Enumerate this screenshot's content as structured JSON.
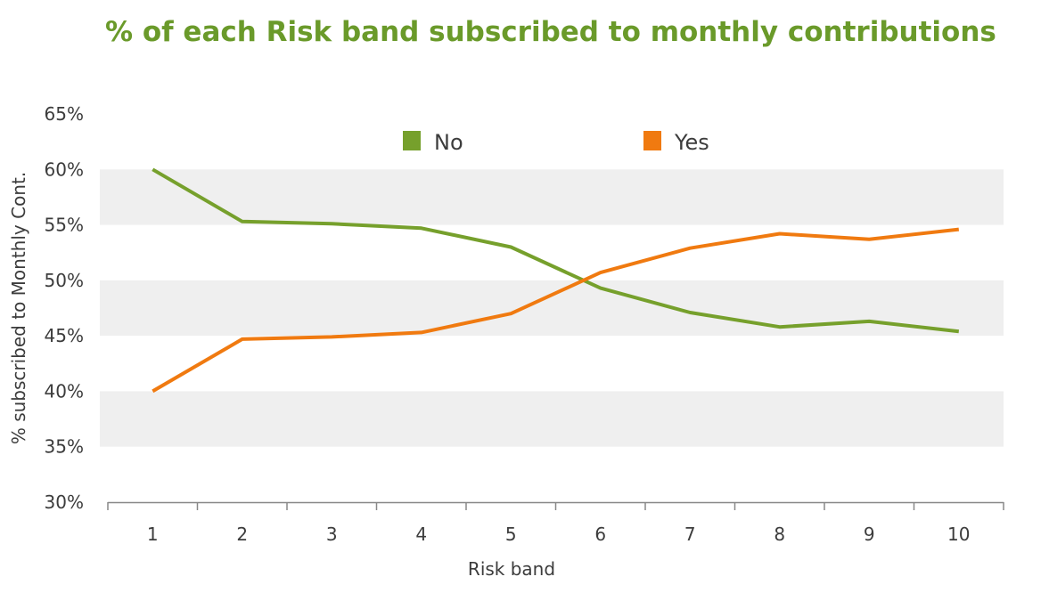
{
  "chart_data": {
    "type": "line",
    "title": "% of each Risk band subscribed to monthly contributions",
    "xlabel": "Risk band",
    "ylabel": "% subscribed to Monthly Cont.",
    "categories": [
      "1",
      "2",
      "3",
      "4",
      "5",
      "6",
      "7",
      "8",
      "9",
      "10"
    ],
    "y_ticks": [
      "30%",
      "35%",
      "40%",
      "45%",
      "50%",
      "55%",
      "60%",
      "65%"
    ],
    "ylim": [
      30,
      65
    ],
    "legend_position": "top-center",
    "grid": "alternating horizontal bands",
    "series": [
      {
        "name": "No",
        "color": "#76a02c",
        "values": [
          60.0,
          55.3,
          55.1,
          54.7,
          53.0,
          49.3,
          47.1,
          45.8,
          46.3,
          45.4
        ]
      },
      {
        "name": "Yes",
        "color": "#f07a10",
        "values": [
          40.0,
          44.7,
          44.9,
          45.3,
          47.0,
          50.7,
          52.9,
          54.2,
          53.7,
          54.6
        ]
      }
    ]
  },
  "colors": {
    "title": "#6a9a2a",
    "band": "#efefef",
    "axis": "#888888",
    "text": "#3c3c3c"
  }
}
